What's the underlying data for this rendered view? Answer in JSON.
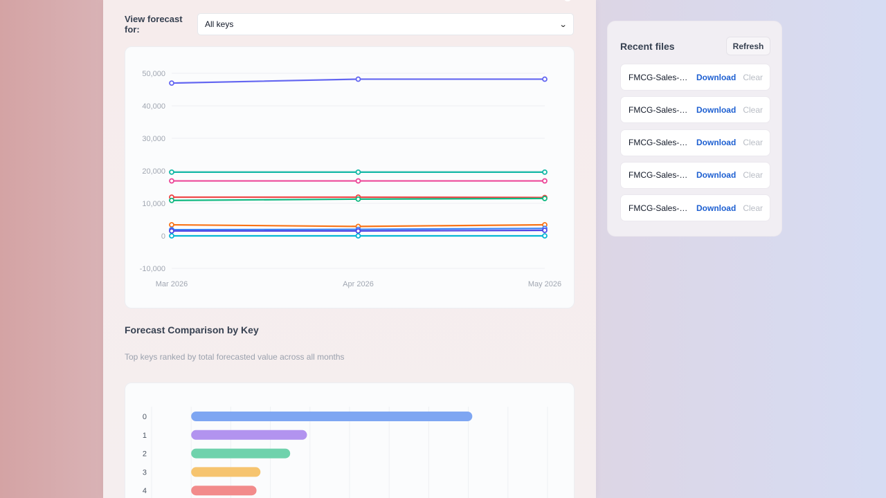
{
  "view": {
    "label": "View forecast for:",
    "selected": "All keys"
  },
  "line_chart": {
    "chart_data": {
      "type": "line",
      "x": [
        "Mar 2026",
        "Apr 2026",
        "May 2026"
      ],
      "ylim": [
        -10000,
        50000
      ],
      "yticks": [
        "-10,000",
        "0",
        "10,000",
        "20,000",
        "30,000",
        "40,000",
        "50,000"
      ],
      "grid": true,
      "series": [
        {
          "color": "#6366f1",
          "values": [
            47000,
            48200,
            48200
          ]
        },
        {
          "color": "#14b8a6",
          "values": [
            19600,
            19600,
            19600
          ]
        },
        {
          "color": "#ec4899",
          "values": [
            16900,
            16900,
            16900
          ]
        },
        {
          "color": "#ef4444",
          "values": [
            11900,
            11900,
            11800
          ]
        },
        {
          "color": "#10b981",
          "values": [
            10900,
            11300,
            11500
          ]
        },
        {
          "color": "#f97316",
          "values": [
            3400,
            2900,
            3400
          ]
        },
        {
          "color": "#3b82f6",
          "values": [
            1900,
            2000,
            2300
          ]
        },
        {
          "color": "#4f46e5",
          "values": [
            1500,
            1500,
            1700
          ]
        },
        {
          "color": "#06b6d4",
          "values": [
            0,
            0,
            0
          ]
        }
      ]
    }
  },
  "comparison": {
    "title": "Forecast Comparison by Key",
    "subtitle": "Top keys ranked by total forecasted value across all months"
  },
  "bar_chart": {
    "chart_data": {
      "type": "bar",
      "orientation": "horizontal",
      "categories": [
        "0",
        "1",
        "2",
        "3",
        "4"
      ],
      "values": [
        142000,
        58500,
        50000,
        35000,
        33000
      ],
      "xlim": [
        -20000,
        180000
      ],
      "grid": true,
      "colors": [
        "#7ea6f2",
        "#b293ef",
        "#6fd2ac",
        "#f6c46f",
        "#f28b8b"
      ]
    }
  },
  "recent": {
    "title": "Recent files",
    "refresh_label": "Refresh",
    "files": [
      {
        "name": "FMCG-Sales-Data",
        "download": "Download",
        "clear": "Clear"
      },
      {
        "name": "FMCG-Sales-Data",
        "download": "Download",
        "clear": "Clear"
      },
      {
        "name": "FMCG-Sales-Data",
        "download": "Download",
        "clear": "Clear"
      },
      {
        "name": "FMCG-Sales-Data",
        "download": "Download",
        "clear": "Clear"
      },
      {
        "name": "FMCG-Sales-Data",
        "download": "Download",
        "clear": "Clear"
      }
    ]
  }
}
